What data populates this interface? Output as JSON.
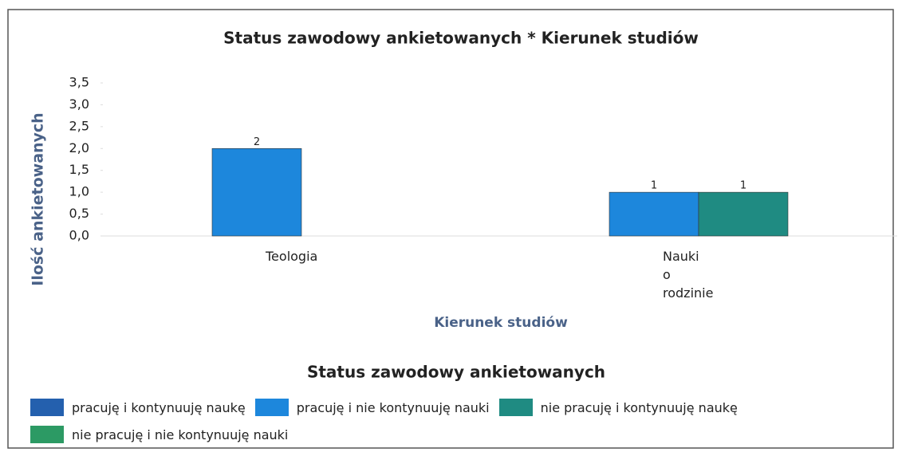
{
  "chart_data": {
    "type": "bar",
    "title": "Status zawodowy ankietowanych * Kierunek studiów",
    "x_label": "Kierunek studiów",
    "y_label": "Ilość ankietowanych",
    "legend_title": "Status zawodowy ankietowanych",
    "categories": [
      "Teologia",
      "Nauki o rodzinie"
    ],
    "series": [
      {
        "name": "pracuję i kontynuuję naukę",
        "color": "#2460ae",
        "values": [
          null,
          null
        ]
      },
      {
        "name": "pracuję i nie kontynuuję nauki",
        "color": "#1d87dc",
        "values": [
          2,
          1
        ]
      },
      {
        "name": "nie pracuję i kontynuuję naukę",
        "color": "#1f8b82",
        "values": [
          null,
          1
        ]
      },
      {
        "name": "nie pracuję i nie kontynuuję nauki",
        "color": "#2c9a64",
        "values": [
          null,
          null
        ]
      }
    ],
    "ylim": [
      0,
      3.5
    ],
    "yticks": [
      {
        "value": 0,
        "label": "0,0"
      },
      {
        "value": 0.5,
        "label": "0,5"
      },
      {
        "value": 1,
        "label": "1,0"
      },
      {
        "value": 1.5,
        "label": "1,5"
      },
      {
        "value": 2,
        "label": "2,0"
      },
      {
        "value": 2.5,
        "label": "2,5"
      },
      {
        "value": 3,
        "label": "3,0"
      },
      {
        "value": 3.5,
        "label": "3,5"
      }
    ]
  }
}
